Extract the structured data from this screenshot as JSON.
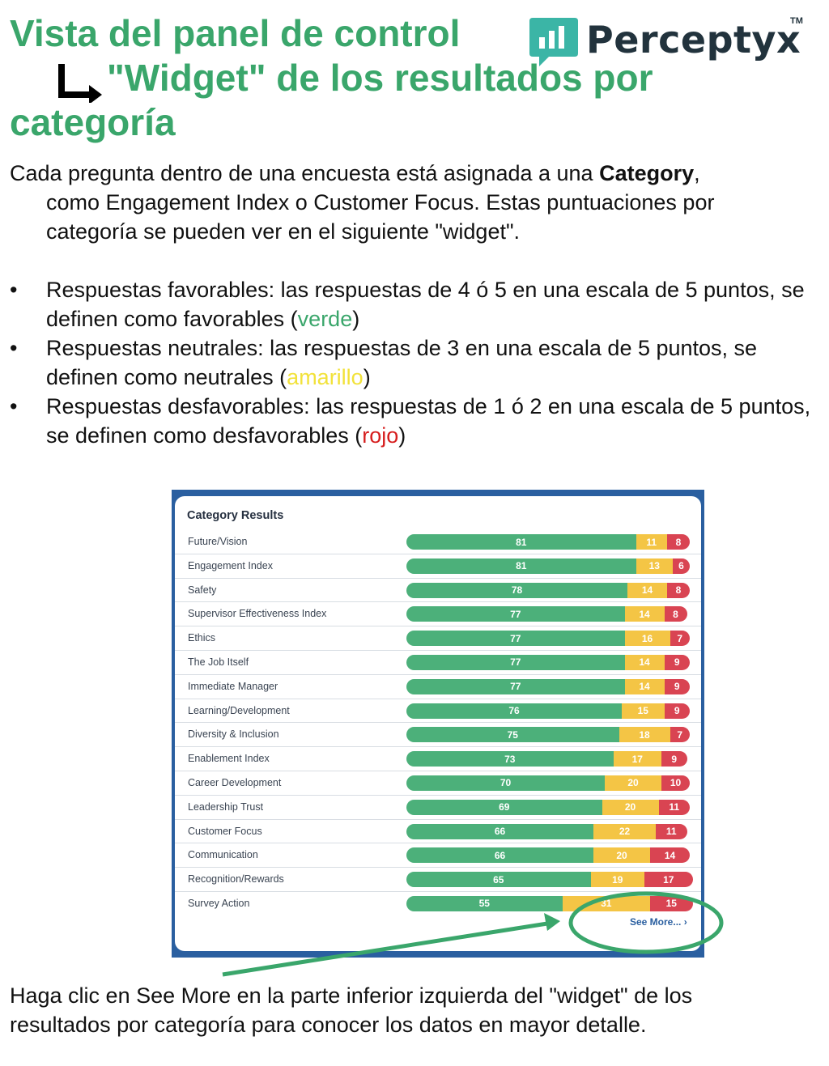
{
  "title": {
    "line1": "Vista del panel de control",
    "line2": "\"Widget\" de los resultados por",
    "line3": "categoría"
  },
  "logo": {
    "text": "Perceptyx",
    "tm": "TM"
  },
  "intro": {
    "part1": "Cada pregunta dentro de una encuesta está asignada a una ",
    "bold": "Category",
    "part2": ",",
    "line2": "como Engagement Index o Customer Focus. Estas puntuaciones por",
    "line3": "categoría se pueden ver en el siguiente \"widget\"."
  },
  "bullets": [
    {
      "dot": "•",
      "before": "Respuestas favorables: las respuestas de 4 ó 5 en una escala de 5 puntos, se definen como favorables (",
      "colored": "verde",
      "after": ")"
    },
    {
      "dot": "•",
      "before": "Respuestas neutrales: las respuestas de 3 en una escala de 5 puntos, se definen como neutrales (",
      "colored": "amarillo",
      "after": ")"
    },
    {
      "dot": "•",
      "before": "Respuestas desfavorables: las respuestas de 1 ó 2 en una escala de 5 puntos, se definen como desfavorables (",
      "colored": "rojo",
      "after": ")"
    }
  ],
  "widget": {
    "title": "Category Results",
    "see_more": "See More... ›",
    "colors": {
      "favorable": "#4cb07a",
      "neutral": "#f4c545",
      "unfavorable": "#d94452"
    }
  },
  "chart_data": {
    "type": "bar",
    "stacked": true,
    "orientation": "horizontal",
    "title": "Category Results",
    "categories": [
      "Future/Vision",
      "Engagement Index",
      "Safety",
      "Supervisor Effectiveness Index",
      "Ethics",
      "The Job Itself",
      "Immediate Manager",
      "Learning/Development",
      "Diversity & Inclusion",
      "Enablement Index",
      "Career Development",
      "Leadership Trust",
      "Customer Focus",
      "Communication",
      "Recognition/Rewards",
      "Survey Action"
    ],
    "series": [
      {
        "values": [
          81,
          81,
          78,
          77,
          77,
          77,
          77,
          76,
          75,
          73,
          70,
          69,
          66,
          66,
          65,
          55
        ],
        "color": "#4cb07a"
      },
      {
        "values": [
          11,
          13,
          14,
          14,
          16,
          14,
          14,
          15,
          18,
          17,
          20,
          20,
          22,
          20,
          19,
          31
        ],
        "color": "#f4c545"
      },
      {
        "values": [
          8,
          6,
          8,
          8,
          7,
          9,
          9,
          9,
          7,
          9,
          10,
          11,
          11,
          14,
          17,
          15
        ],
        "color": "#d94452"
      }
    ]
  },
  "footer": {
    "line1": "Haga clic en See More en la parte inferior izquierda del \"widget\" de los",
    "line2": "resultados por categoría para conocer los datos en mayor detalle."
  },
  "annotations": {
    "highlight_color": "#3aa66b"
  }
}
